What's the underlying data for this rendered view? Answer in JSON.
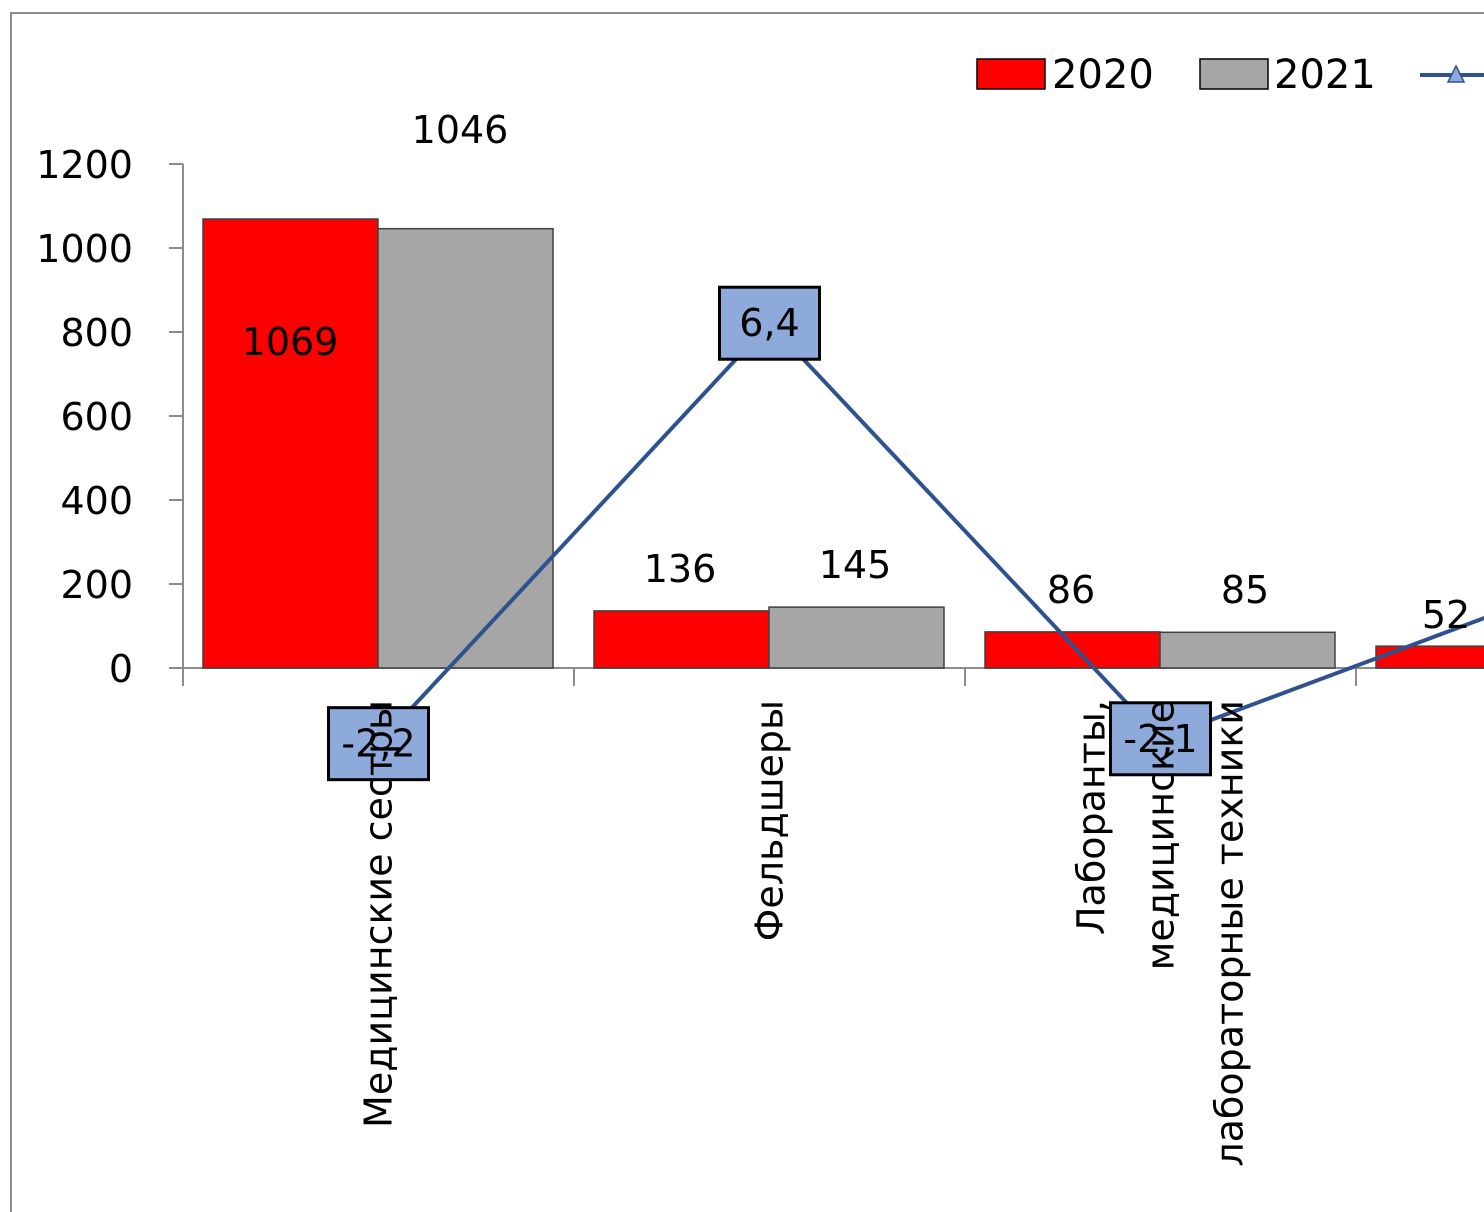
{
  "chart_data": {
    "type": "bar",
    "categories": [
      [
        "Медицинские сестры"
      ],
      [
        "Фельдшеры"
      ],
      [
        "Лаборанты,",
        "медицинские",
        "лабораторные техники"
      ],
      [
        ""
      ]
    ],
    "series": [
      {
        "name": "2020",
        "values": [
          1069,
          136,
          86,
          52
        ],
        "labels": [
          "1069",
          "136",
          "86",
          "52"
        ],
        "color": "#ff0000"
      },
      {
        "name": "2021",
        "values": [
          1046,
          145,
          85,
          null
        ],
        "labels": [
          "1046",
          "145",
          "85",
          ""
        ],
        "color": "#a6a6a6"
      }
    ],
    "line_series": {
      "name": "",
      "values": [
        -2.2,
        6.4,
        -2.1,
        null
      ],
      "labels": [
        "-2,2",
        "6,4",
        "-2,1",
        ""
      ],
      "color": "#2f528f",
      "label_bg": "#8eaadb"
    },
    "y_ticks": [
      "0",
      "200",
      "400",
      "600",
      "800",
      "1000",
      "1200"
    ],
    "ylim": [
      0,
      1200
    ],
    "legend_position": "top-right"
  }
}
